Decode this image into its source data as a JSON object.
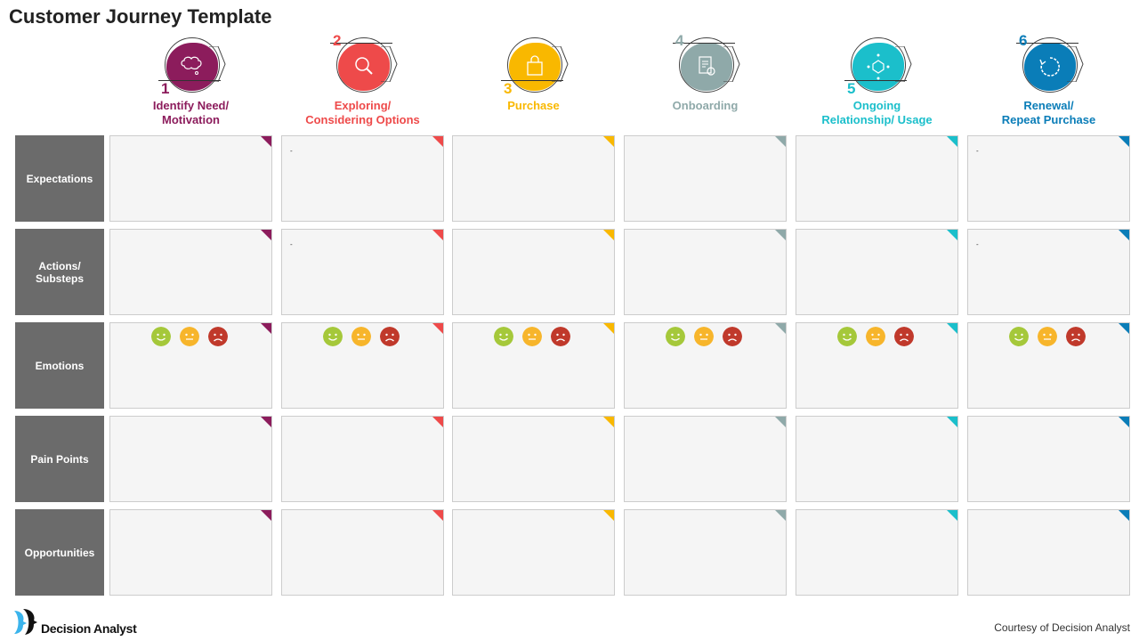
{
  "title": "Customer Journey Template",
  "stages": [
    {
      "num": "1",
      "label": "Identify Need/\nMotivation",
      "color": "#8c1c5c",
      "icon": "thought-bubble-icon"
    },
    {
      "num": "2",
      "label": "Exploring/\nConsidering Options",
      "color": "#ee4a4a",
      "icon": "magnifier-icon"
    },
    {
      "num": "3",
      "label": "Purchase",
      "color": "#f9b800",
      "icon": "shopping-bag-icon"
    },
    {
      "num": "4",
      "label": "Onboarding",
      "color": "#8fa9a9",
      "icon": "document-gear-icon"
    },
    {
      "num": "5",
      "label": "Ongoing\nRelationship/ Usage",
      "color": "#1bbfcb",
      "icon": "network-box-icon"
    },
    {
      "num": "6",
      "label": "Renewal/\nRepeat Purchase",
      "color": "#0a7db8",
      "icon": "refresh-cycle-icon"
    }
  ],
  "rows": [
    {
      "label": "Expectations"
    },
    {
      "label": "Actions/\nSubsteps"
    },
    {
      "label": "Emotions"
    },
    {
      "label": "Pain Points"
    },
    {
      "label": "Opportunities"
    }
  ],
  "cell_marks": {
    "dash": "-"
  },
  "emotion_colors": {
    "happy": "#a5c83a",
    "neutral": "#f7b52b",
    "sad": "#c0392b"
  },
  "footer": {
    "logo": "Decision Analyst",
    "credit": "Courtesy of Decision Analyst"
  }
}
